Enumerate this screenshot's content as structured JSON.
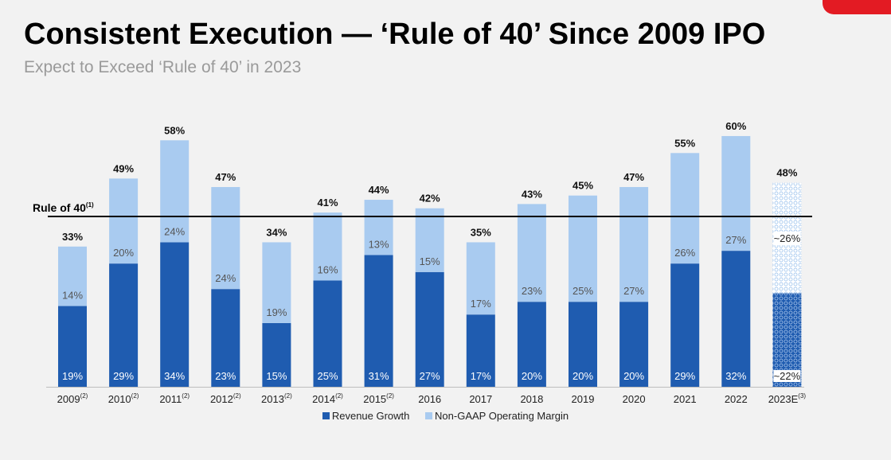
{
  "slide": {
    "title": "Consistent Execution — ‘Rule of 40’ Since 2009 IPO",
    "subtitle": "Expect to Exceed ‘Rule of 40’ in 2023",
    "accent_color": "#e31b23"
  },
  "chart_data": {
    "type": "bar",
    "stacked": true,
    "categories": [
      "2009",
      "2010",
      "2011",
      "2012",
      "2013",
      "2014",
      "2015",
      "2016",
      "2017",
      "2018",
      "2019",
      "2020",
      "2021",
      "2022",
      "2023E"
    ],
    "category_superscripts": [
      "(2)",
      "(2)",
      "(2)",
      "(2)",
      "(2)",
      "(2)",
      "(2)",
      "",
      "",
      "",
      "",
      "",
      "",
      "",
      "(3)"
    ],
    "series": [
      {
        "name": "Revenue Growth",
        "color": "#1f5cb0",
        "values": [
          19,
          29,
          34,
          23,
          15,
          25,
          31,
          27,
          17,
          20,
          20,
          20,
          29,
          32,
          22
        ],
        "labels": [
          "19%",
          "29%",
          "34%",
          "23%",
          "15%",
          "25%",
          "31%",
          "27%",
          "17%",
          "20%",
          "20%",
          "20%",
          "29%",
          "32%",
          "~22%"
        ]
      },
      {
        "name": "Non-GAAP Operating Margin",
        "color": "#a9cbf0",
        "values": [
          14,
          20,
          24,
          24,
          19,
          16,
          13,
          15,
          17,
          23,
          25,
          27,
          26,
          27,
          26
        ],
        "labels": [
          "14%",
          "20%",
          "24%",
          "24%",
          "19%",
          "16%",
          "13%",
          "15%",
          "17%",
          "23%",
          "25%",
          "27%",
          "26%",
          "27%",
          "~26%"
        ]
      }
    ],
    "totals": [
      33,
      49,
      58,
      47,
      34,
      41,
      44,
      42,
      35,
      43,
      45,
      47,
      55,
      60,
      48
    ],
    "total_labels": [
      "33%",
      "49%",
      "58%",
      "47%",
      "34%",
      "41%",
      "44%",
      "42%",
      "35%",
      "43%",
      "45%",
      "47%",
      "55%",
      "60%",
      "48%"
    ],
    "estimate_category": "2023E",
    "reference_line": {
      "value": 40,
      "label": "Rule of 40",
      "superscript": "(1)"
    },
    "ylim": [
      0,
      60
    ],
    "grid": false,
    "legend_position": "bottom-center"
  }
}
